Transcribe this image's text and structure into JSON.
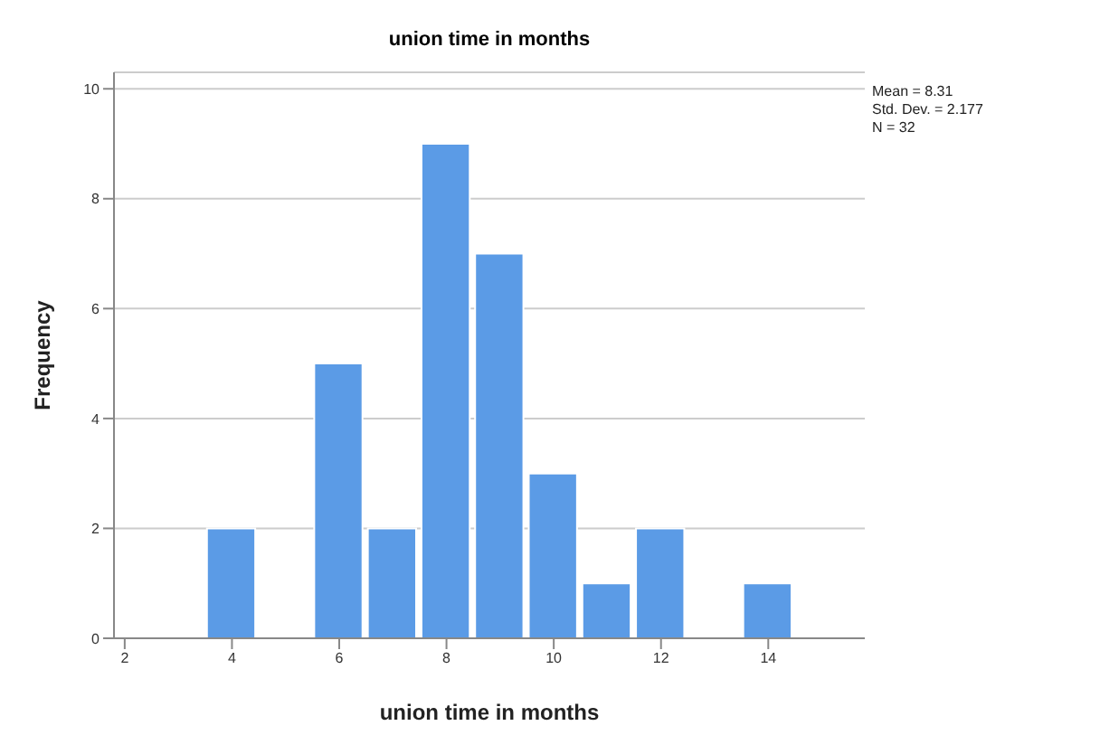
{
  "chart_data": {
    "type": "histogram",
    "title": "union time in months",
    "xlabel": "union time in months",
    "ylabel": "Frequency",
    "bins": [
      3.5,
      4.5,
      5.5,
      6.5,
      7.5,
      8.5,
      9.5,
      10.5,
      11.5,
      12.5,
      13.5,
      14.5
    ],
    "values": [
      2,
      0,
      5,
      2,
      9,
      7,
      3,
      1,
      2,
      0,
      1
    ],
    "color": "#5b9be6",
    "xlim": [
      1.8,
      15.8
    ],
    "xticks": [
      2,
      4,
      6,
      8,
      10,
      12,
      14
    ],
    "ylim": [
      0,
      10.3
    ],
    "yticks": [
      0,
      2,
      4,
      6,
      8,
      10
    ],
    "grid": "y",
    "annotations": [
      "Mean = 8.31",
      "Std. Dev. = 2.177",
      "N = 32"
    ]
  }
}
